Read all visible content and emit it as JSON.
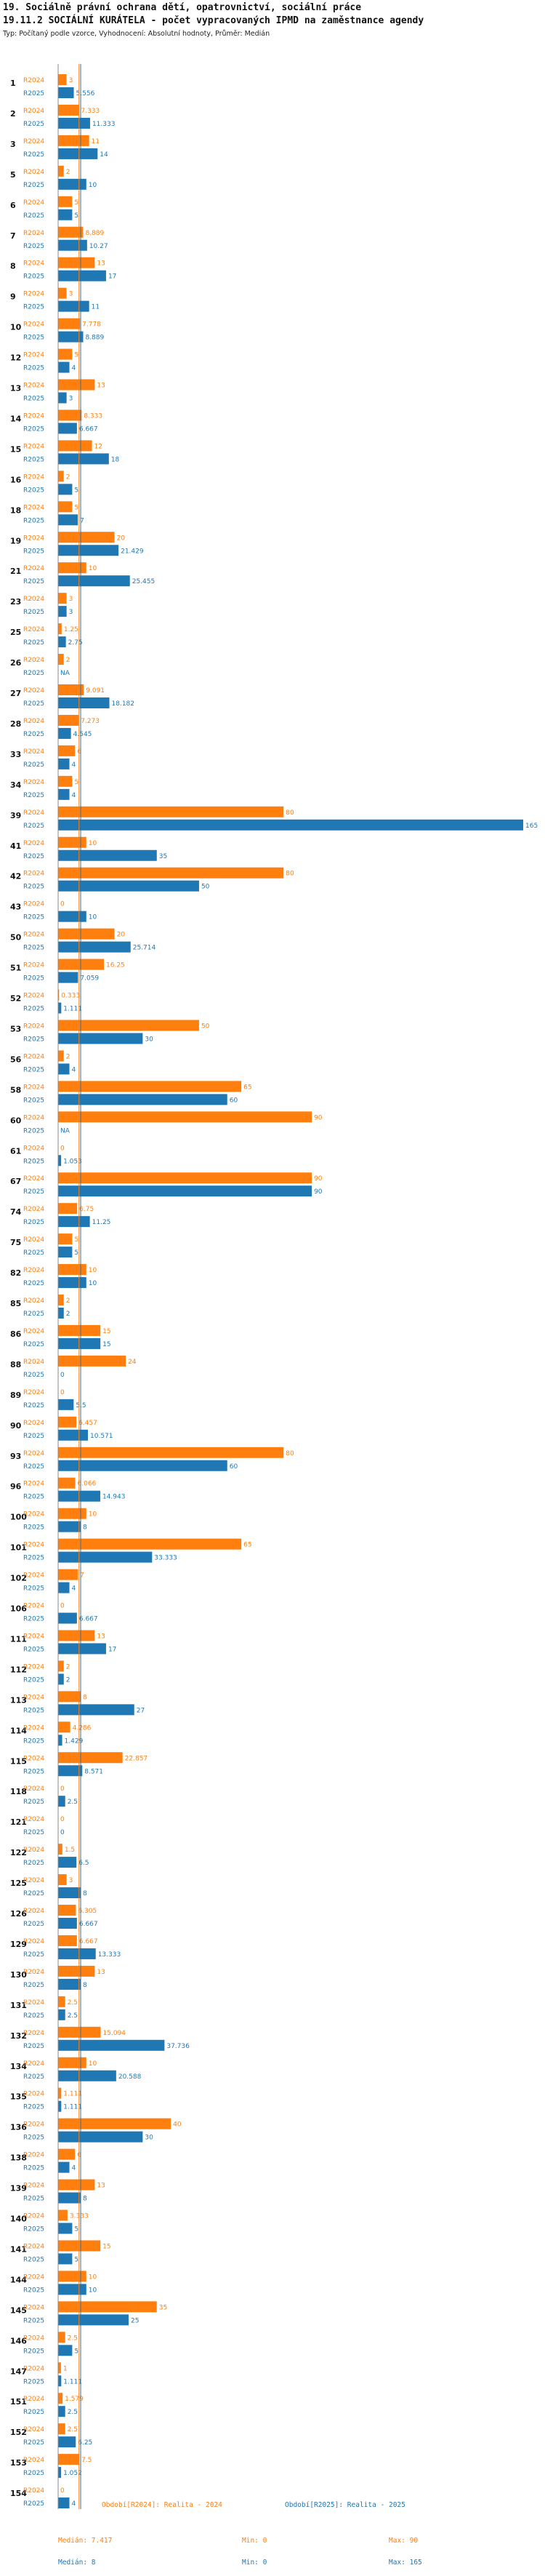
{
  "header": {
    "title": "19. Sociálně právní ochrana dětí, opatrovnictví, sociální práce",
    "subtitle": "19.11.2 SOCIÁLNÍ KURÁTELA - počet vypracovaných IPMD na zaměstnance agendy",
    "settings": "Typ: Počítaný podle vzorce, Vyhodnocení: Absolutní hodnoty, Průměr: Medián"
  },
  "legend": {
    "orange": {
      "title": "Období[R2024]: Realita - 2024",
      "median": "Medián: 7.417",
      "min": "Min: 0",
      "max": "Max: 90"
    },
    "blue": {
      "title": "Období[R2025]: Realita - 2025",
      "median": "Medián: 8",
      "min": "Min: 0",
      "max": "Max: 165"
    }
  },
  "colors": {
    "orange": "#ff7f0e",
    "blue": "#1f77b4",
    "axis": "#888888"
  },
  "chart_data": {
    "type": "bar",
    "orientation": "horizontal",
    "xlim": [
      0,
      165
    ],
    "medians": [
      7.417,
      8
    ],
    "categories": [
      "1",
      "2",
      "3",
      "5",
      "6",
      "7",
      "8",
      "9",
      "10",
      "12",
      "13",
      "14",
      "15",
      "16",
      "18",
      "19",
      "21",
      "23",
      "25",
      "26",
      "27",
      "28",
      "33",
      "34",
      "39",
      "41",
      "42",
      "43",
      "50",
      "51",
      "52",
      "53",
      "56",
      "58",
      "60",
      "61",
      "67",
      "74",
      "75",
      "82",
      "85",
      "86",
      "88",
      "89",
      "90",
      "93",
      "96",
      "100",
      "101",
      "102",
      "106",
      "111",
      "112",
      "113",
      "114",
      "115",
      "118",
      "121",
      "122",
      "125",
      "126",
      "129",
      "130",
      "131",
      "132",
      "134",
      "135",
      "136",
      "138",
      "139",
      "140",
      "141",
      "144",
      "145",
      "146",
      "147",
      "151",
      "152",
      "153",
      "154"
    ],
    "series": [
      {
        "name": "R2024",
        "labels": [
          "3",
          "7.333",
          "11",
          "2",
          "5",
          "8.889",
          "13",
          "3",
          "7.778",
          "5",
          "13",
          "8.333",
          "12",
          "2",
          "5",
          "20",
          "10",
          "3",
          "1.25",
          "2",
          "9.091",
          "7.273",
          "6",
          "5",
          "80",
          "10",
          "80",
          "0",
          "20",
          "16.25",
          "0.333",
          "50",
          "2",
          "65",
          "90",
          "0",
          "90",
          "6.75",
          "5",
          "10",
          "2",
          "15",
          "24",
          "0",
          "6.457",
          "80",
          "6.066",
          "10",
          "65",
          "7",
          "0",
          "13",
          "2",
          "8",
          "4.286",
          "22.857",
          "0",
          "0",
          "1.5",
          "3",
          "6.305",
          "6.667",
          "13",
          "2.5",
          "15.094",
          "10",
          "1.111",
          "40",
          "6",
          "13",
          "3.333",
          "15",
          "10",
          "35",
          "2.5",
          "1",
          "1.579",
          "2.5",
          "7.5",
          "0"
        ],
        "values": [
          3,
          7.333,
          11,
          2,
          5,
          8.889,
          13,
          3,
          7.778,
          5,
          13,
          8.333,
          12,
          2,
          5,
          20,
          10,
          3,
          1.25,
          2,
          9.091,
          7.273,
          6,
          5,
          80,
          10,
          80,
          0,
          20,
          16.25,
          0.333,
          50,
          2,
          65,
          90,
          0,
          90,
          6.75,
          5,
          10,
          2,
          15,
          24,
          0,
          6.457,
          80,
          6.066,
          10,
          65,
          7,
          0,
          13,
          2,
          8,
          4.286,
          22.857,
          0,
          0,
          1.5,
          3,
          6.305,
          6.667,
          13,
          2.5,
          15.094,
          10,
          1.111,
          40,
          6,
          13,
          3.333,
          15,
          10,
          35,
          2.5,
          1,
          1.579,
          2.5,
          7.5,
          0
        ]
      },
      {
        "name": "R2025",
        "labels": [
          "5.556",
          "11.333",
          "14",
          "10",
          "5",
          "10.27",
          "17",
          "11",
          "8.889",
          "4",
          "3",
          "6.667",
          "18",
          "5",
          "7",
          "21.429",
          "25.455",
          "3",
          "2.75",
          "NA",
          "18.182",
          "4.545",
          "4",
          "4",
          "165",
          "35",
          "50",
          "10",
          "25.714",
          "7.059",
          "1.111",
          "30",
          "4",
          "60",
          "NA",
          "1.053",
          "90",
          "11.25",
          "5",
          "10",
          "2",
          "15",
          "0",
          "5.5",
          "10.571",
          "60",
          "14.943",
          "8",
          "33.333",
          "4",
          "6.667",
          "17",
          "2",
          "27",
          "1.429",
          "8.571",
          "2.5",
          "0",
          "6.5",
          "8",
          "6.667",
          "13.333",
          "8",
          "2.5",
          "37.736",
          "20.588",
          "1.111",
          "30",
          "4",
          "8",
          "5",
          "5",
          "10",
          "25",
          "5",
          "1.111",
          "2.5",
          "6.25",
          "1.052",
          "4"
        ],
        "values": [
          5.556,
          11.333,
          14,
          10,
          5,
          10.27,
          17,
          11,
          8.889,
          4,
          3,
          6.667,
          18,
          5,
          7,
          21.429,
          25.455,
          3,
          2.75,
          null,
          18.182,
          4.545,
          4,
          4,
          165,
          35,
          50,
          10,
          25.714,
          7.059,
          1.111,
          30,
          4,
          60,
          null,
          1.053,
          90,
          11.25,
          5,
          10,
          2,
          15,
          0,
          5.5,
          10.571,
          60,
          14.943,
          8,
          33.333,
          4,
          6.667,
          17,
          2,
          27,
          1.429,
          8.571,
          2.5,
          0,
          6.5,
          8,
          6.667,
          13.333,
          8,
          2.5,
          37.736,
          20.588,
          1.111,
          30,
          4,
          8,
          5,
          5,
          10,
          25,
          5,
          1.111,
          2.5,
          6.25,
          1.052,
          4
        ]
      }
    ]
  }
}
